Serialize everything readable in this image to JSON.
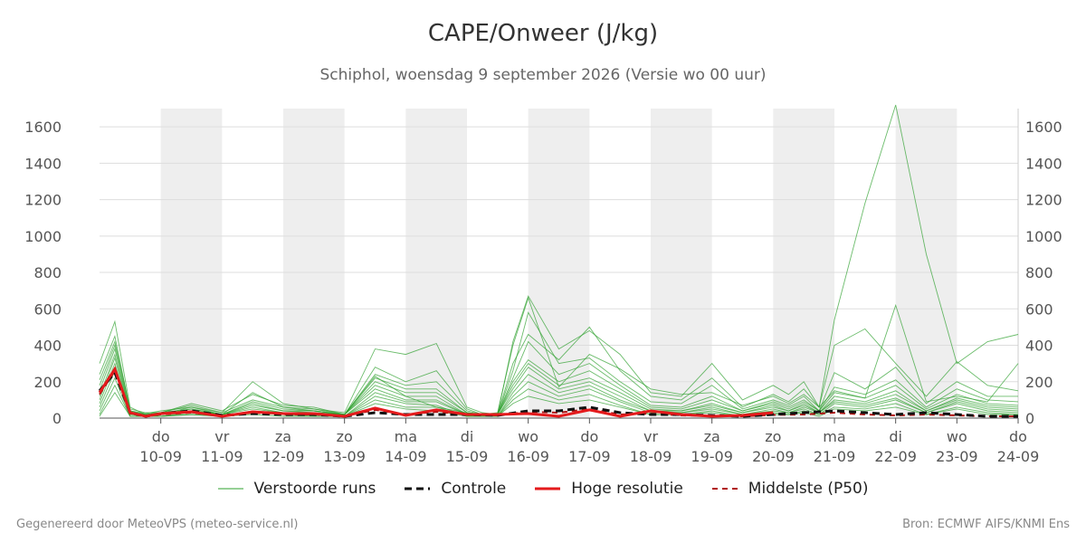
{
  "title": "CAPE/Onweer (J/kg)",
  "subtitle": "Schiphol, woensdag  9 september 2026 (Versie wo 00 uur)",
  "footer": {
    "left": "Gegenereerd door MeteoVPS (meteo-service.nl)",
    "right": "Bron: ECMWF AIFS/KNMI Ens"
  },
  "colors": {
    "ensemble": "#2ca02c",
    "control": "#111111",
    "high_res": "#e41a1c",
    "median": "#b01010",
    "weekend_band": "#eeeeee",
    "grid": "#dddddd"
  },
  "legend": [
    {
      "key": "ensemble",
      "label": "Verstoorde runs",
      "style": "thin"
    },
    {
      "key": "control",
      "label": "Controle",
      "style": "dashed-bold"
    },
    {
      "key": "high_res",
      "label": "Hoge resolutie",
      "style": "solid-bold"
    },
    {
      "key": "median",
      "label": "Middelste (P50)",
      "style": "dashed"
    }
  ],
  "chart_data": {
    "type": "line",
    "x_unit": "days since 9 september 2026 00:00",
    "xlim": [
      0,
      15
    ],
    "ylim": [
      0,
      1700
    ],
    "yticks": [
      0,
      200,
      400,
      600,
      800,
      1000,
      1200,
      1400,
      1600
    ],
    "grid": true,
    "legend_placement": "bottom",
    "x_ticks": [
      {
        "day": "do",
        "date": "10-09"
      },
      {
        "day": "vr",
        "date": "11-09"
      },
      {
        "day": "za",
        "date": "12-09"
      },
      {
        "day": "zo",
        "date": "13-09"
      },
      {
        "day": "ma",
        "date": "14-09"
      },
      {
        "day": "di",
        "date": "15-09"
      },
      {
        "day": "wo",
        "date": "16-09"
      },
      {
        "day": "do",
        "date": "17-09"
      },
      {
        "day": "vr",
        "date": "18-09"
      },
      {
        "day": "za",
        "date": "19-09"
      },
      {
        "day": "zo",
        "date": "20-09"
      },
      {
        "day": "ma",
        "date": "21-09"
      },
      {
        "day": "di",
        "date": "22-09"
      },
      {
        "day": "wo",
        "date": "23-09"
      },
      {
        "day": "do",
        "date": "24-09"
      }
    ],
    "shaded_days": [
      1,
      3,
      5,
      7,
      9,
      11,
      13
    ],
    "ensemble": [
      {
        "x": [
          0,
          0.25,
          0.5,
          0.75,
          1,
          1.5,
          2,
          2.5,
          3,
          3.5,
          4,
          4.5,
          5,
          5.5,
          6,
          6.25,
          6.5,
          6.75,
          7,
          7.5,
          8,
          8.5,
          9,
          9.5,
          10,
          10.5,
          11,
          11.25,
          11.5,
          11.75,
          12,
          12.5,
          13,
          13.5,
          14,
          14.5,
          15
        ],
        "y": [
          300,
          530,
          60,
          20,
          30,
          80,
          40,
          130,
          70,
          60,
          20,
          230,
          120,
          60,
          30,
          20,
          30,
          400,
          660,
          170,
          350,
          270,
          160,
          130,
          140,
          70,
          120,
          80,
          130,
          60,
          150,
          110,
          620,
          90,
          120,
          90,
          300
        ]
      },
      {
        "x": [
          0,
          0.25,
          0.5,
          0.75,
          1,
          1.5,
          2,
          2.5,
          3,
          3.5,
          4,
          4.5,
          5,
          5.5,
          6,
          6.25,
          6.5,
          6.75,
          7,
          7.5,
          8,
          8.5,
          9,
          9.5,
          10,
          10.5,
          11,
          11.25,
          11.5,
          11.75,
          12,
          12.5,
          13,
          13.5,
          14,
          14.5,
          15
        ],
        "y": [
          240,
          450,
          40,
          25,
          40,
          60,
          30,
          200,
          80,
          50,
          30,
          380,
          350,
          410,
          60,
          30,
          20,
          420,
          670,
          380,
          480,
          350,
          140,
          120,
          300,
          100,
          180,
          130,
          200,
          60,
          540,
          1180,
          1720,
          900,
          300,
          420,
          460
        ]
      },
      {
        "x": [
          0,
          0.25,
          0.5,
          0.75,
          1,
          1.5,
          2,
          2.5,
          3,
          3.5,
          4,
          4.5,
          5,
          5.5,
          6,
          6.25,
          6.5,
          6.75,
          7,
          7.5,
          8,
          8.5,
          9,
          9.5,
          10,
          10.5,
          11,
          11.25,
          11.5,
          11.75,
          12,
          12.5,
          13,
          13.5,
          14,
          14.5,
          15
        ],
        "y": [
          210,
          420,
          50,
          30,
          30,
          50,
          20,
          140,
          60,
          40,
          20,
          280,
          200,
          260,
          50,
          20,
          20,
          300,
          460,
          320,
          500,
          260,
          120,
          100,
          220,
          60,
          130,
          90,
          160,
          60,
          400,
          490,
          300,
          120,
          310,
          180,
          150
        ]
      },
      {
        "x": [
          0,
          0.25,
          0.5,
          0.75,
          1,
          1.5,
          2,
          2.5,
          3,
          3.5,
          4,
          4.5,
          5,
          5.5,
          6,
          6.25,
          6.5,
          6.75,
          7,
          7.5,
          8,
          8.5,
          9,
          9.5,
          10,
          10.5,
          11,
          11.25,
          11.5,
          11.75,
          12,
          12.5,
          13,
          13.5,
          14,
          14.5,
          15
        ],
        "y": [
          180,
          400,
          40,
          20,
          30,
          70,
          30,
          100,
          60,
          50,
          20,
          240,
          180,
          200,
          40,
          20,
          20,
          260,
          580,
          300,
          330,
          200,
          90,
          80,
          180,
          50,
          100,
          70,
          120,
          40,
          250,
          160,
          280,
          80,
          200,
          120,
          120
        ]
      },
      {
        "x": [
          0,
          0.25,
          0.5,
          0.75,
          1,
          1.5,
          2,
          2.5,
          3,
          3.5,
          4,
          4.5,
          5,
          5.5,
          6,
          6.25,
          6.5,
          6.75,
          7,
          7.5,
          8,
          8.5,
          9,
          9.5,
          10,
          10.5,
          11,
          11.25,
          11.5,
          11.75,
          12,
          12.5,
          13,
          13.5,
          14,
          14.5,
          15
        ],
        "y": [
          150,
          380,
          30,
          20,
          20,
          60,
          20,
          90,
          50,
          40,
          20,
          220,
          160,
          160,
          30,
          20,
          20,
          220,
          420,
          240,
          300,
          180,
          70,
          60,
          120,
          40,
          90,
          60,
          100,
          40,
          170,
          130,
          210,
          60,
          160,
          100,
          90
        ]
      },
      {
        "x": [
          0,
          0.25,
          0.5,
          0.75,
          1,
          1.5,
          2,
          2.5,
          3,
          3.5,
          4,
          4.5,
          5,
          5.5,
          6,
          6.25,
          6.5,
          6.75,
          7,
          7.5,
          8,
          8.5,
          9,
          9.5,
          10,
          10.5,
          11,
          11.25,
          11.5,
          11.75,
          12,
          12.5,
          13,
          13.5,
          14,
          14.5,
          15
        ],
        "y": [
          120,
          350,
          30,
          20,
          20,
          50,
          20,
          80,
          40,
          40,
          20,
          200,
          140,
          140,
          30,
          20,
          20,
          200,
          320,
          200,
          260,
          160,
          60,
          50,
          100,
          40,
          80,
          50,
          90,
          40,
          140,
          110,
          180,
          50,
          130,
          80,
          70
        ]
      },
      {
        "x": [
          0,
          0.25,
          0.5,
          0.75,
          1,
          1.5,
          2,
          2.5,
          3,
          3.5,
          4,
          4.5,
          5,
          5.5,
          6,
          6.25,
          6.5,
          6.75,
          7,
          7.5,
          8,
          8.5,
          9,
          9.5,
          10,
          10.5,
          11,
          11.25,
          11.5,
          11.75,
          12,
          12.5,
          13,
          13.5,
          14,
          14.5,
          15
        ],
        "y": [
          100,
          330,
          20,
          20,
          20,
          40,
          20,
          70,
          40,
          30,
          20,
          180,
          120,
          120,
          20,
          20,
          20,
          180,
          300,
          180,
          220,
          140,
          50,
          40,
          80,
          30,
          70,
          40,
          80,
          30,
          120,
          90,
          150,
          40,
          110,
          70,
          60
        ]
      },
      {
        "x": [
          0,
          0.25,
          0.5,
          0.75,
          1,
          1.5,
          2,
          2.5,
          3,
          3.5,
          4,
          4.5,
          5,
          5.5,
          6,
          6.25,
          6.5,
          6.75,
          7,
          7.5,
          8,
          8.5,
          9,
          9.5,
          10,
          10.5,
          11,
          11.25,
          11.5,
          11.75,
          12,
          12.5,
          13,
          13.5,
          14,
          14.5,
          15
        ],
        "y": [
          80,
          300,
          20,
          20,
          20,
          40,
          20,
          60,
          30,
          30,
          20,
          160,
          100,
          100,
          20,
          20,
          20,
          160,
          280,
          160,
          200,
          120,
          40,
          40,
          70,
          30,
          60,
          40,
          70,
          30,
          100,
          80,
          130,
          40,
          100,
          60,
          50
        ]
      },
      {
        "x": [
          0,
          0.25,
          0.5,
          0.75,
          1,
          1.5,
          2,
          2.5,
          3,
          3.5,
          4,
          4.5,
          5,
          5.5,
          6,
          6.25,
          6.5,
          6.75,
          7,
          7.5,
          8,
          8.5,
          9,
          9.5,
          10,
          10.5,
          11,
          11.25,
          11.5,
          11.75,
          12,
          12.5,
          13,
          13.5,
          14,
          14.5,
          15
        ],
        "y": [
          60,
          260,
          20,
          10,
          20,
          30,
          20,
          50,
          30,
          20,
          10,
          140,
          90,
          90,
          20,
          10,
          10,
          140,
          240,
          140,
          180,
          100,
          40,
          30,
          60,
          20,
          50,
          30,
          60,
          30,
          90,
          70,
          110,
          30,
          90,
          50,
          40
        ]
      },
      {
        "x": [
          0,
          0.25,
          0.5,
          0.75,
          1,
          1.5,
          2,
          2.5,
          3,
          3.5,
          4,
          4.5,
          5,
          5.5,
          6,
          6.25,
          6.5,
          6.75,
          7,
          7.5,
          8,
          8.5,
          9,
          9.5,
          10,
          10.5,
          11,
          11.25,
          11.5,
          11.75,
          12,
          12.5,
          13,
          13.5,
          14,
          14.5,
          15
        ],
        "y": [
          40,
          220,
          10,
          10,
          10,
          30,
          10,
          40,
          20,
          20,
          10,
          120,
          80,
          70,
          10,
          10,
          10,
          120,
          200,
          120,
          160,
          90,
          30,
          30,
          50,
          20,
          40,
          30,
          50,
          20,
          80,
          60,
          100,
          30,
          80,
          40,
          30
        ]
      },
      {
        "x": [
          0,
          0.25,
          0.5,
          0.75,
          1,
          1.5,
          2,
          2.5,
          3,
          3.5,
          4,
          4.5,
          5,
          5.5,
          6,
          6.25,
          6.5,
          6.75,
          7,
          7.5,
          8,
          8.5,
          9,
          9.5,
          10,
          10.5,
          11,
          11.25,
          11.5,
          11.75,
          12,
          12.5,
          13,
          13.5,
          14,
          14.5,
          15
        ],
        "y": [
          20,
          180,
          10,
          10,
          10,
          20,
          10,
          30,
          20,
          10,
          10,
          100,
          60,
          60,
          10,
          10,
          10,
          100,
          160,
          100,
          130,
          70,
          20,
          20,
          40,
          10,
          30,
          20,
          40,
          20,
          60,
          50,
          80,
          20,
          60,
          30,
          20
        ]
      },
      {
        "x": [
          0,
          0.25,
          0.5,
          0.75,
          1,
          1.5,
          2,
          2.5,
          3,
          3.5,
          4,
          4.5,
          5,
          5.5,
          6,
          6.25,
          6.5,
          6.75,
          7,
          7.5,
          8,
          8.5,
          9,
          9.5,
          10,
          10.5,
          11,
          11.25,
          11.5,
          11.75,
          12,
          12.5,
          13,
          13.5,
          14,
          14.5,
          15
        ],
        "y": [
          10,
          140,
          10,
          10,
          10,
          20,
          10,
          20,
          10,
          10,
          10,
          80,
          50,
          40,
          10,
          10,
          10,
          80,
          120,
          80,
          100,
          60,
          20,
          20,
          30,
          10,
          20,
          20,
          30,
          10,
          50,
          40,
          60,
          20,
          50,
          20,
          20
        ]
      }
    ],
    "control": {
      "x": [
        0,
        0.25,
        0.5,
        0.75,
        1,
        1.5,
        2,
        2.5,
        3,
        3.5,
        4,
        4.5,
        5,
        5.5,
        6,
        6.5,
        7,
        7.5,
        8,
        8.5,
        9,
        9.5,
        10,
        10.5,
        11,
        11.5,
        12,
        12.5,
        13,
        13.5,
        14,
        14.5,
        15
      ],
      "y": [
        150,
        250,
        30,
        10,
        25,
        40,
        15,
        25,
        20,
        20,
        10,
        30,
        20,
        20,
        20,
        15,
        40,
        40,
        60,
        30,
        20,
        20,
        15,
        10,
        20,
        30,
        40,
        30,
        20,
        30,
        20,
        10,
        10
      ]
    },
    "high_res": {
      "x": [
        0,
        0.25,
        0.5,
        0.75,
        1,
        1.5,
        2,
        2.5,
        3,
        3.5,
        4,
        4.5,
        5,
        5.5,
        6,
        6.5,
        7,
        7.5,
        8,
        8.5,
        9,
        9.5,
        10,
        10.5,
        11
      ],
      "y": [
        140,
        270,
        30,
        10,
        25,
        35,
        10,
        35,
        25,
        25,
        10,
        55,
        15,
        45,
        20,
        20,
        25,
        10,
        45,
        10,
        40,
        20,
        10,
        15,
        30
      ]
    },
    "median": {
      "x": [
        0,
        0.25,
        0.5,
        0.75,
        1,
        1.5,
        2,
        2.5,
        3,
        3.5,
        4,
        4.5,
        5,
        5.5,
        6,
        6.5,
        7,
        7.5,
        8,
        8.5,
        9,
        9.5,
        10,
        10.5,
        11,
        11.5,
        12,
        12.5,
        13,
        13.5,
        14,
        14.5,
        15
      ],
      "y": [
        130,
        260,
        25,
        10,
        20,
        30,
        12,
        30,
        20,
        20,
        10,
        45,
        20,
        35,
        20,
        15,
        35,
        30,
        50,
        20,
        25,
        15,
        12,
        10,
        18,
        20,
        30,
        20,
        15,
        20,
        15,
        10,
        10
      ]
    }
  }
}
